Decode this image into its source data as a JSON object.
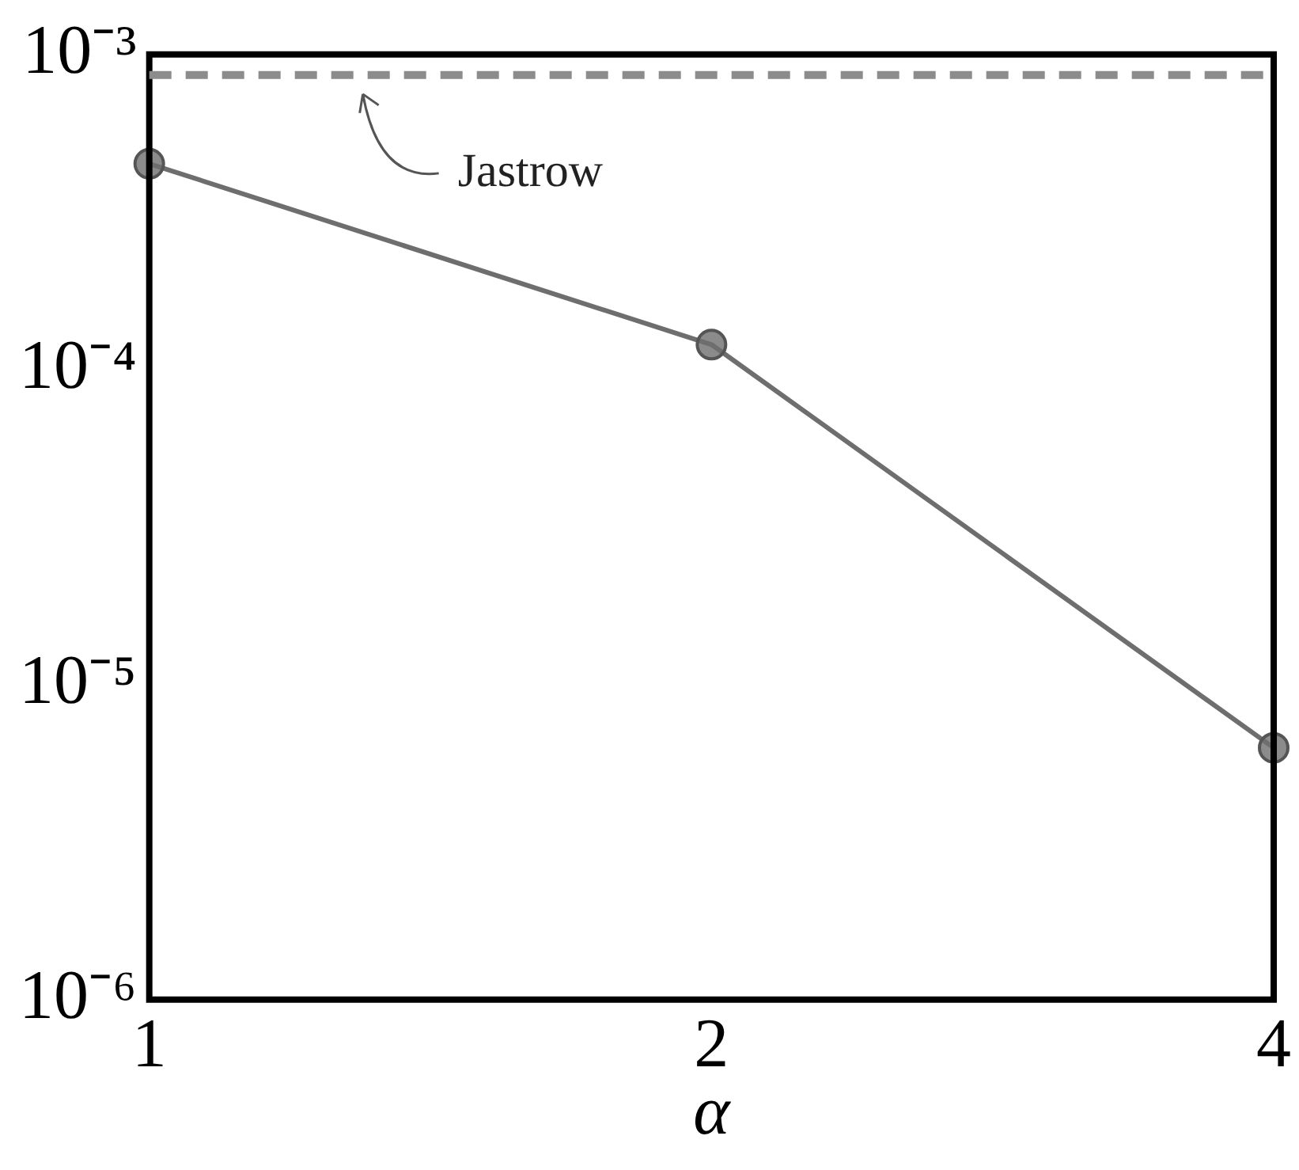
{
  "chart_data": {
    "type": "line",
    "xlabel": "α",
    "categories": [
      "1",
      "2",
      "4"
    ],
    "series": [
      {
        "color": "#6e6e6e",
        "values": [
          0.00045,
          0.00012,
          6.3e-06
        ]
      }
    ],
    "log": "y",
    "ylim": [
      1e-06,
      0.001
    ],
    "yticks": [
      {
        "value": 1e-06,
        "label": "10⁻⁶"
      },
      {
        "value": 1e-05,
        "label": "10⁻⁵"
      },
      {
        "value": 0.0001,
        "label": "10⁻⁴"
      },
      {
        "value": 0.001,
        "label": "10⁻³"
      }
    ],
    "ref_lines": [
      {
        "axis": "y",
        "value": 0.00086,
        "label": "Jastrow",
        "color": "#8c8c8c",
        "line_style": "dashed"
      }
    ],
    "grid": false,
    "legend": false,
    "marker": "circle",
    "line_style": "solid"
  }
}
